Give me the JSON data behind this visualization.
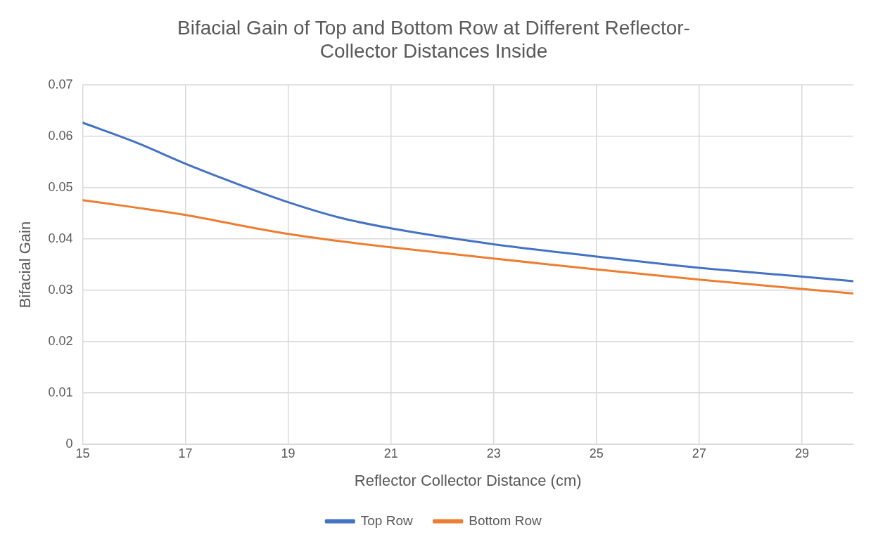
{
  "chart_data": {
    "type": "line",
    "title": "Bifacial Gain of Top and Bottom Row at Different Reflector-Collector Distances Inside",
    "xlabel": "Reflector Collector Distance (cm)",
    "ylabel": "Bifacial Gain",
    "x": [
      15,
      16,
      17,
      18,
      19,
      20,
      21,
      23,
      25,
      27,
      29,
      30
    ],
    "series": [
      {
        "name": "Top Row",
        "color": "#4472c4",
        "values": [
          0.0627,
          0.059,
          0.0547,
          0.0508,
          0.0472,
          0.0442,
          0.0421,
          0.039,
          0.0366,
          0.0344,
          0.0327,
          0.0318
        ]
      },
      {
        "name": "Bottom Row",
        "color": "#ed7d31",
        "values": [
          0.0476,
          0.0462,
          0.0447,
          0.0428,
          0.041,
          0.0396,
          0.0384,
          0.0362,
          0.0341,
          0.0321,
          0.0303,
          0.0294
        ]
      }
    ],
    "xlim": [
      15,
      30
    ],
    "xticks": [
      15,
      17,
      19,
      21,
      23,
      25,
      27,
      29
    ],
    "ylim": [
      0,
      0.07
    ],
    "yticks": [
      0,
      0.01,
      0.02,
      0.03,
      0.04,
      0.05,
      0.06,
      0.07
    ],
    "grid": true,
    "legend": "bottom",
    "marker": "none",
    "line_style": "solid"
  }
}
